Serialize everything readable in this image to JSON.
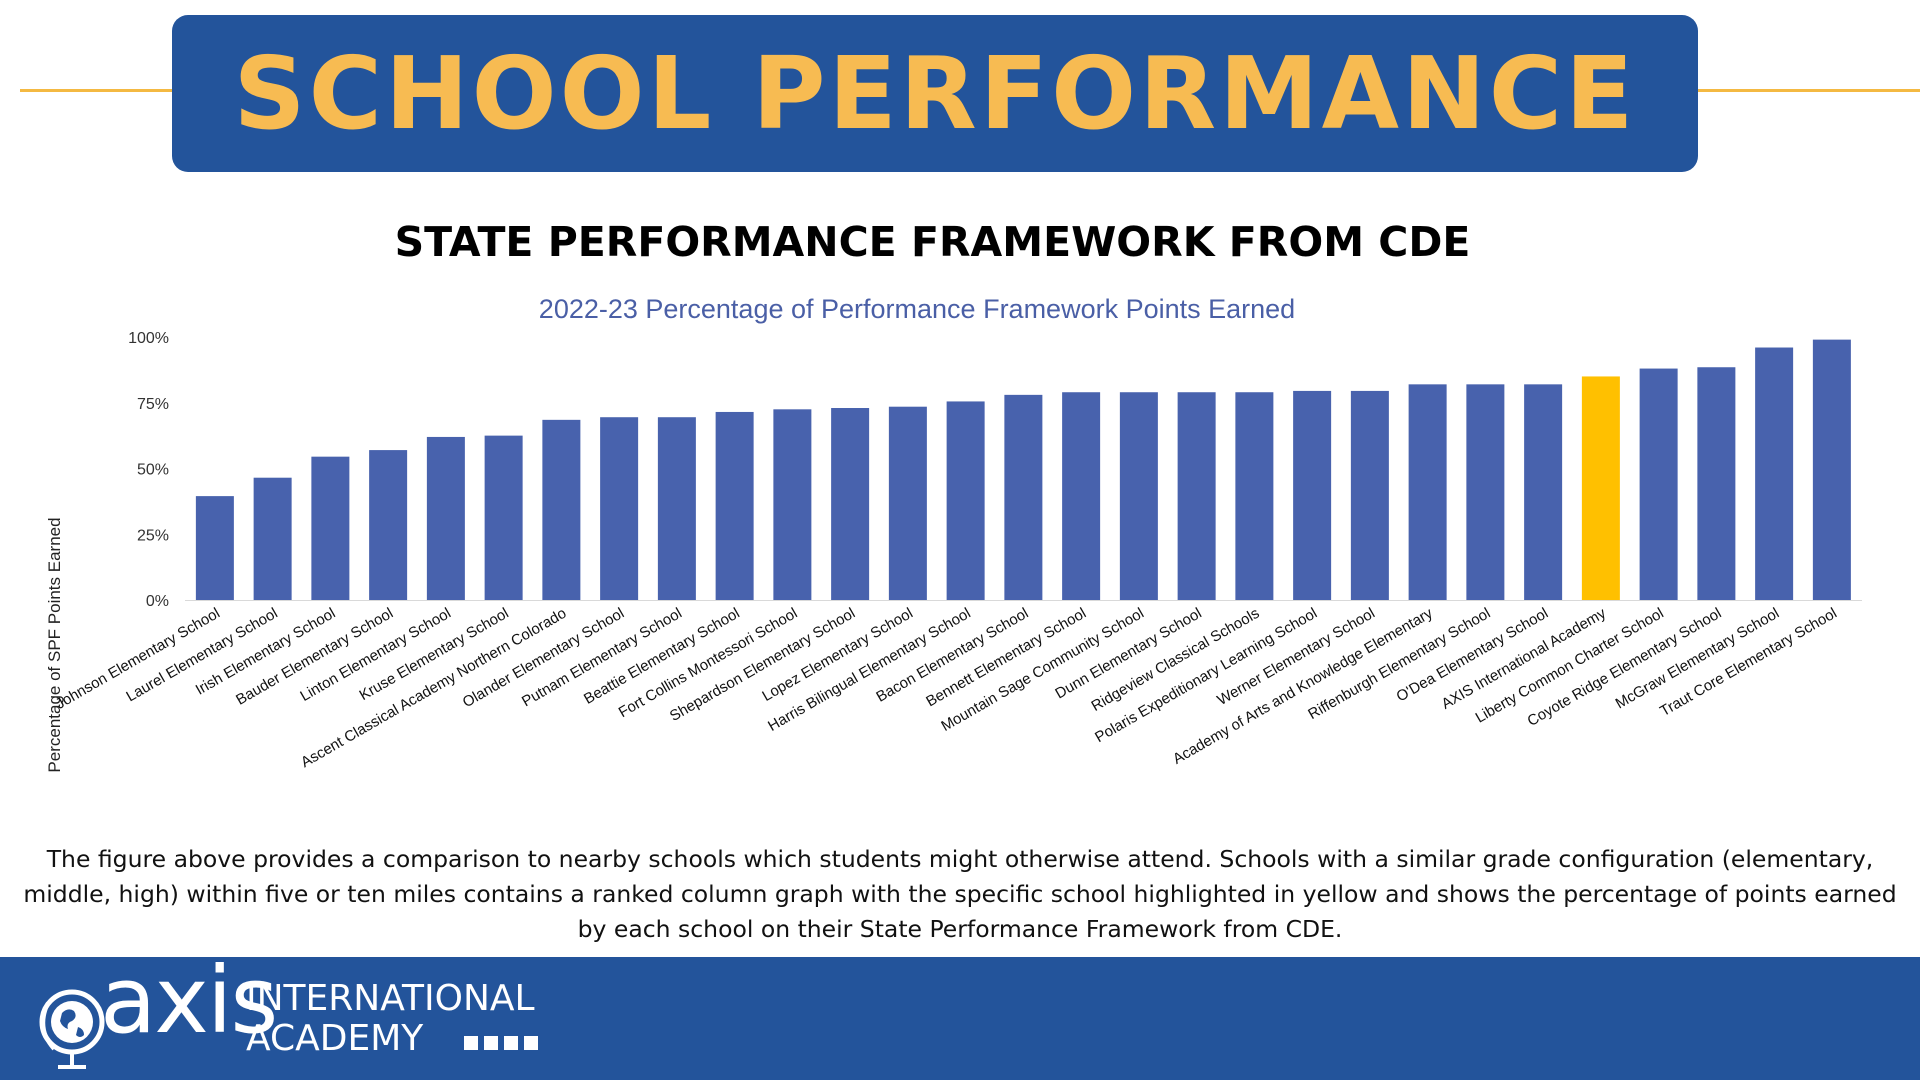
{
  "banner": {
    "title": "SCHOOL PERFORMANCE"
  },
  "section_title": "STATE PERFORMANCE FRAMEWORK FROM CDE",
  "caption": "The figure above provides a comparison to nearby schools which students might otherwise attend. Schools with a similar grade configuration (elementary, middle, high) within five or ten miles contains a ranked column graph with the specific school highlighted in yellow and shows the percentage of points earned by each school on their State Performance Framework from CDE.",
  "logo": {
    "word": "axis",
    "line1": "INTERNATIONAL",
    "line2": "ACADEMY"
  },
  "colors": {
    "banner": "#23549b",
    "banner_text": "#f7bb52",
    "bar": "#4862ad",
    "highlight": "#ffc000",
    "chart_title": "#4a5fa6"
  },
  "chart_data": {
    "type": "bar",
    "title": "2022-23 Percentage of Performance Framework Points Earned",
    "ylabel": "Percentage of SPF Points Earned",
    "xlabel": "",
    "ylim": [
      0,
      100
    ],
    "yticks": [
      "0%",
      "25%",
      "50%",
      "75%",
      "100%"
    ],
    "grid": false,
    "highlight_index": 24,
    "categories": [
      "Johnson Elementary School",
      "Laurel Elementary School",
      "Irish Elementary School",
      "Bauder Elementary School",
      "Linton Elementary School",
      "Kruse Elementary School",
      "Ascent Classical Academy Northern Colorado",
      "Olander Elementary School",
      "Putnam Elementary School",
      "Beattie Elementary School",
      "Fort Collins Montessori School",
      "Shepardson Elementary School",
      "Lopez Elementary School",
      "Harris Bilingual Elementary School",
      "Bacon Elementary School",
      "Bennett Elementary School",
      "Mountain Sage Community School",
      "Dunn Elementary School",
      "Ridgeview Classical Schools",
      "Polaris Expeditionary Learning School",
      "Werner Elementary School",
      "Academy of Arts and Knowledge Elementary",
      "Riffenburgh Elementary School",
      "O'Dea Elementary School",
      "AXIS International Academy",
      "Liberty Common Charter School",
      "Coyote Ridge Elementary School",
      "McGraw Elementary School",
      "Traut Core Elementary School"
    ],
    "values": [
      39.5,
      46.5,
      54.5,
      57,
      62,
      62.5,
      68.5,
      69.5,
      69.5,
      71.5,
      72.5,
      73,
      73.5,
      75.5,
      78,
      79,
      79,
      79,
      79,
      79.5,
      79.5,
      82,
      82,
      82,
      85,
      88,
      88.5,
      96,
      99
    ]
  }
}
